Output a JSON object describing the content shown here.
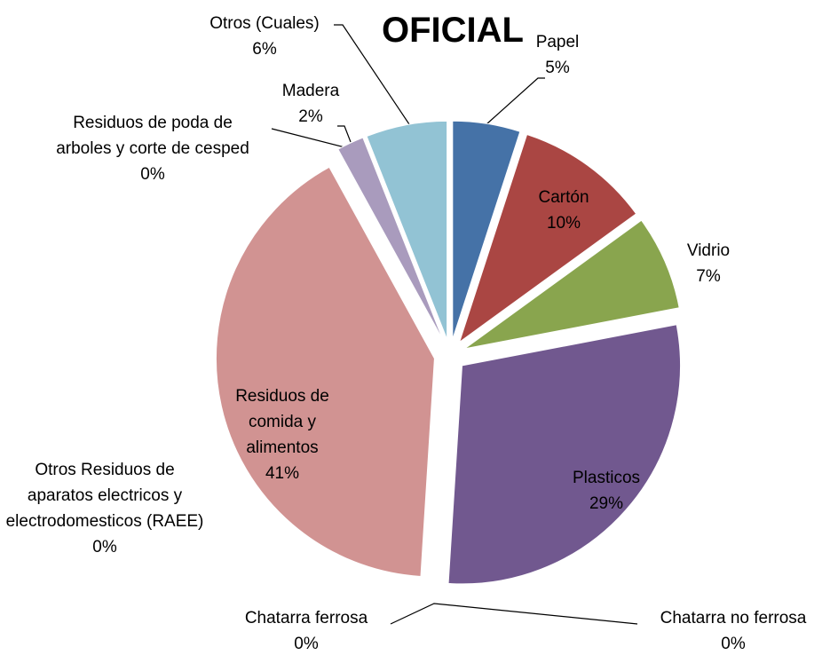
{
  "chart_data": {
    "type": "pie",
    "title": "OFICIAL",
    "categories": [
      "Papel",
      "Cartón",
      "Vidrio",
      "Plasticos",
      "Chatarra no ferrosa",
      "Chatarra ferrosa",
      "Otros Residuos de aparatos electricos y electrodomesticos (RAEE)",
      "Residuos de comida y alimentos",
      "Residuos de poda de arboles y corte de cesped",
      "Madera",
      "Otros (Cuales)"
    ],
    "values": [
      5,
      10,
      7,
      29,
      0,
      0,
      0,
      41,
      0,
      2,
      6
    ],
    "value_labels": [
      "5%",
      "10%",
      "7%",
      "29%",
      "0%",
      "0%",
      "0%",
      "41%",
      "0%",
      "2%",
      "6%"
    ],
    "colors": [
      "#4572a7",
      "#aa4643",
      "#89a54e",
      "#71588f",
      "#4198af",
      "#db843d",
      "#93a9cf",
      "#d19392",
      "#b9cd96",
      "#a99bbd",
      "#92c3d4"
    ]
  }
}
